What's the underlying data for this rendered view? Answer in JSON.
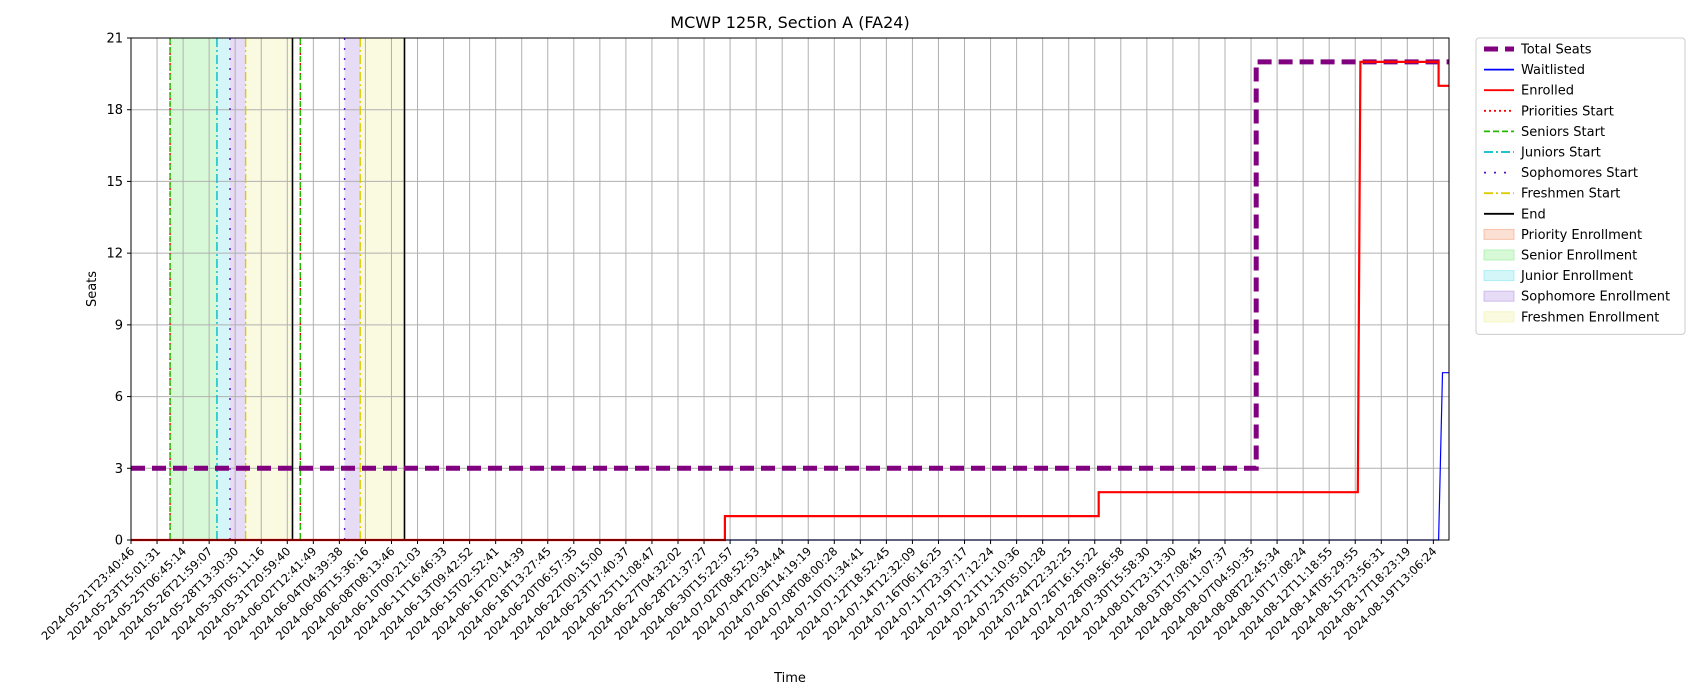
{
  "chart_data": {
    "type": "line",
    "title": "MCWP 125R, Section A (FA24)",
    "xlabel": "Time",
    "ylabel": "Seats",
    "ylim": [
      0,
      21
    ],
    "yticks": [
      0,
      3,
      6,
      9,
      12,
      15,
      18,
      21
    ],
    "grid": true,
    "legend_position": "outside-right",
    "xticks": [
      "2024-05-21T23:40:46",
      "2024-05-23T15:01:31",
      "2024-05-25T06:45:14",
      "2024-05-26T21:59:07",
      "2024-05-28T13:30:30",
      "2024-05-30T05:11:16",
      "2024-05-31T20:59:40",
      "2024-06-02T12:41:49",
      "2024-06-04T04:39:38",
      "2024-06-06T15:36:16",
      "2024-06-08T08:13:46",
      "2024-06-10T00:21:03",
      "2024-06-11T16:46:33",
      "2024-06-13T09:42:52",
      "2024-06-15T02:52:41",
      "2024-06-16T20:14:39",
      "2024-06-18T13:27:45",
      "2024-06-20T06:57:35",
      "2024-06-22T00:15:00",
      "2024-06-23T17:40:37",
      "2024-06-25T11:08:47",
      "2024-06-27T04:32:02",
      "2024-06-28T21:37:27",
      "2024-06-30T15:22:57",
      "2024-07-02T08:52:53",
      "2024-07-04T20:34:44",
      "2024-07-06T14:19:19",
      "2024-07-08T08:00:28",
      "2024-07-10T01:34:41",
      "2024-07-12T18:52:45",
      "2024-07-14T12:32:09",
      "2024-07-16T06:16:25",
      "2024-07-17T23:37:17",
      "2024-07-19T17:12:24",
      "2024-07-21T11:10:36",
      "2024-07-23T05:01:28",
      "2024-07-24T22:32:25",
      "2024-07-26T16:15:22",
      "2024-07-28T09:56:58",
      "2024-07-30T15:58:30",
      "2024-08-01T23:13:30",
      "2024-08-03T17:08:45",
      "2024-08-05T11:07:37",
      "2024-08-07T04:50:35",
      "2024-08-08T22:45:34",
      "2024-08-10T17:08:24",
      "2024-08-12T11:18:55",
      "2024-08-14T05:29:55",
      "2024-08-15T23:56:31",
      "2024-08-17T18:23:19",
      "2024-08-19T13:06:24"
    ],
    "series": [
      {
        "name": "Total Seats",
        "color": "#800080",
        "style": "dashed-thick",
        "points": [
          [
            0,
            3
          ],
          [
            43.2,
            3
          ],
          [
            43.2,
            20
          ],
          [
            50.6,
            20
          ]
        ]
      },
      {
        "name": "Waitlisted",
        "color": "#0000ff",
        "style": "solid-thin",
        "points": [
          [
            0,
            0
          ],
          [
            50.2,
            0
          ],
          [
            50.35,
            7
          ],
          [
            50.6,
            7
          ]
        ]
      },
      {
        "name": "Enrolled",
        "color": "#ff0000",
        "style": "solid",
        "points": [
          [
            0,
            0
          ],
          [
            22.8,
            0
          ],
          [
            22.8,
            1
          ],
          [
            37.15,
            1
          ],
          [
            37.15,
            2
          ],
          [
            47.1,
            2
          ],
          [
            47.2,
            20
          ],
          [
            50.2,
            20
          ],
          [
            50.2,
            19
          ],
          [
            50.6,
            19
          ]
        ]
      }
    ],
    "markers": [
      {
        "name": "Priorities Start",
        "color": "#ff0000",
        "style": "dotted",
        "x": [
          1.5,
          6.5
        ]
      },
      {
        "name": "Seniors Start",
        "color": "#22bb00",
        "style": "dashed",
        "x": [
          1.5,
          6.5
        ]
      },
      {
        "name": "Juniors Start",
        "color": "#00bbcc",
        "style": "dashdot",
        "x": [
          3.3
        ]
      },
      {
        "name": "Sophomores Start",
        "color": "#5511cc",
        "style": "loosedot",
        "x": [
          3.8,
          8.2
        ]
      },
      {
        "name": "Freshmen Start",
        "color": "#ddcc00",
        "style": "dashdot",
        "x": [
          4.4,
          8.8
        ]
      },
      {
        "name": "End",
        "color": "#000000",
        "style": "solid",
        "x": [
          6.2,
          10.5
        ]
      }
    ],
    "periods": [
      {
        "name": "Priority Enrollment",
        "color": "#f4a582",
        "ranges": []
      },
      {
        "name": "Senior Enrollment",
        "color": "#90ee90",
        "ranges": [
          [
            1.5,
            3.3
          ]
        ]
      },
      {
        "name": "Junior Enrollment",
        "color": "#87e6ee",
        "ranges": [
          [
            3.3,
            3.8
          ]
        ]
      },
      {
        "name": "Sophomore Enrollment",
        "color": "#b79be6",
        "ranges": [
          [
            3.8,
            4.4
          ],
          [
            8.2,
            8.8
          ]
        ]
      },
      {
        "name": "Freshmen Enrollment",
        "color": "#f2f2a6",
        "ranges": [
          [
            4.4,
            6.2
          ],
          [
            8.8,
            10.5
          ]
        ]
      }
    ]
  }
}
